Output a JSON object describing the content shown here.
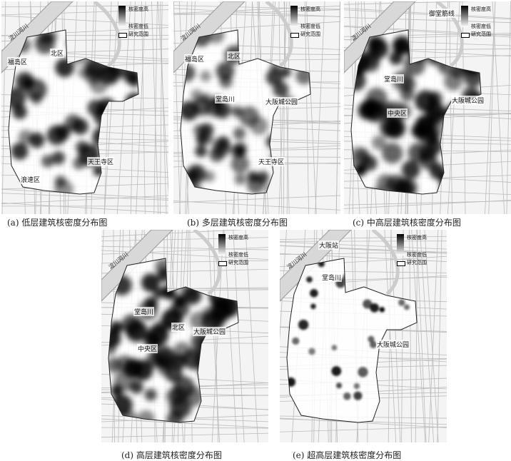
{
  "legend": {
    "high": "核密度高",
    "low": "核密度低",
    "range": "研究范围"
  },
  "panels": [
    {
      "id": "a",
      "caption": "(a) 低层建筑核密度分布图",
      "river": "淀川河川",
      "labels": [
        "福岛区",
        "北区",
        "天王寺区",
        "浪速区"
      ],
      "density": "low-rise"
    },
    {
      "id": "b",
      "caption": "(b) 多层建筑核密度分布图",
      "river": "淀川河川",
      "labels": [
        "福岛区",
        "北区",
        "堂岛川",
        "大阪城公园",
        "天王寺区"
      ],
      "density": "mid-rise"
    },
    {
      "id": "c",
      "caption": "(c) 中高层建筑核密度分布图",
      "river": "淀川河川",
      "labels": [
        "御堂筋线",
        "堂岛川",
        "大阪城公园",
        "中央区"
      ],
      "density": "mid-high-rise"
    },
    {
      "id": "d",
      "caption": "(d) 高层建筑核密度分布图",
      "river": "淀川河川",
      "labels": [
        "北区",
        "堂岛川",
        "大阪城公园",
        "中央区"
      ],
      "density": "high-rise"
    },
    {
      "id": "e",
      "caption": "(e) 超高层建筑核密度分布图",
      "river": "淀川河川",
      "labels": [
        "大阪站",
        "堂岛川",
        "大阪城公园"
      ],
      "density": "super-high-rise"
    }
  ]
}
